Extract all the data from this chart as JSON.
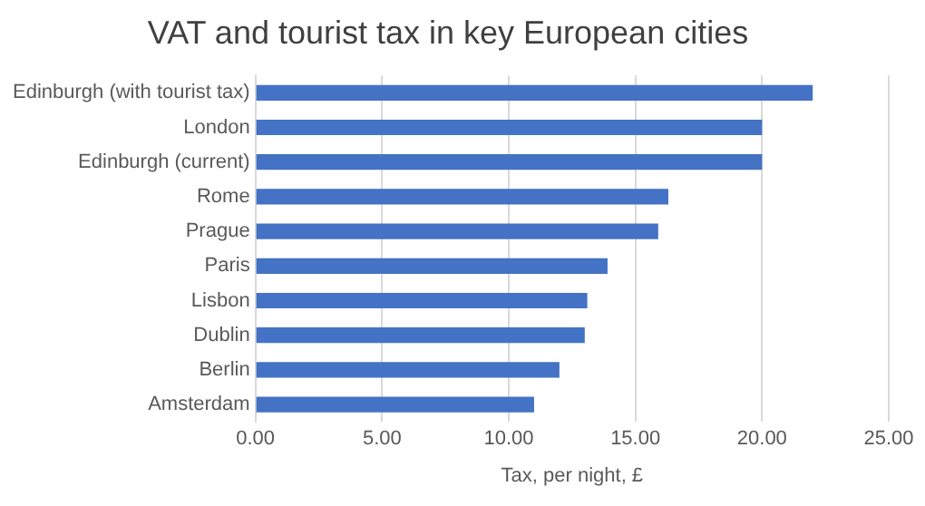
{
  "chart_data": {
    "type": "bar",
    "orientation": "horizontal",
    "title": "VAT and tourist tax in key European cities",
    "xlabel": "Tax, per night, £",
    "categories": [
      "Edinburgh (with tourist tax)",
      "London",
      "Edinburgh (current)",
      "Rome",
      "Prague",
      "Paris",
      "Lisbon",
      "Dublin",
      "Berlin",
      "Amsterdam"
    ],
    "values": [
      22.0,
      20.0,
      20.0,
      16.3,
      15.9,
      13.9,
      13.1,
      13.0,
      12.0,
      11.0
    ],
    "color": "#4472c4",
    "xlim": [
      0,
      25
    ],
    "xticks": [
      {
        "value": 0,
        "label": "0.00"
      },
      {
        "value": 5,
        "label": "5.00"
      },
      {
        "value": 10,
        "label": "10.00"
      },
      {
        "value": 15,
        "label": "15.00"
      },
      {
        "value": 20,
        "label": "20.00"
      },
      {
        "value": 25,
        "label": "25.00"
      }
    ],
    "grid": "x"
  }
}
